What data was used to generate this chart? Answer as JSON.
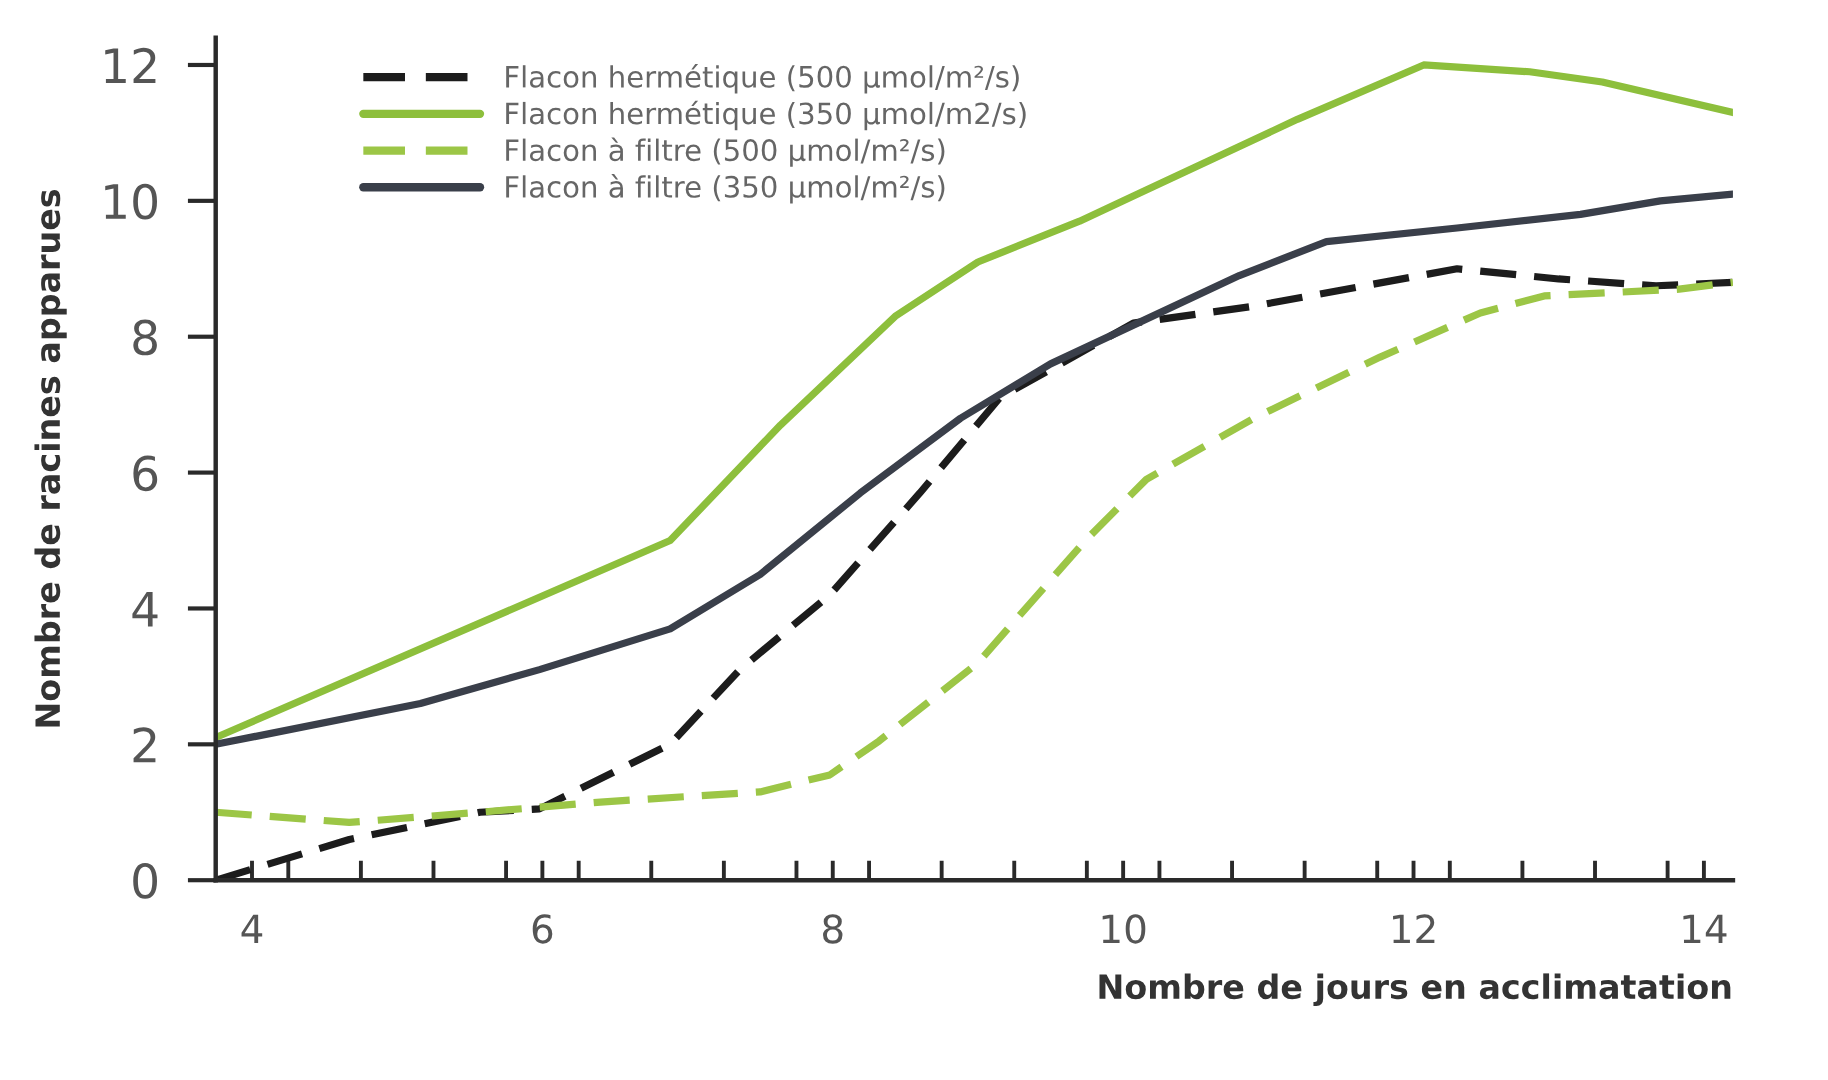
{
  "chart_data": {
    "type": "line",
    "xlabel": "Nombre de jours en acclimatation",
    "ylabel": "Nombre de racines apparues",
    "xlim": [
      3.75,
      14.2
    ],
    "ylim": [
      0,
      12.4
    ],
    "xticks": [
      4,
      6,
      8,
      10,
      12,
      14,
      {
        "value": 4.25,
        "label": null
      },
      {
        "value": 4.75,
        "label": null
      },
      {
        "value": 5.25,
        "label": null
      },
      {
        "value": 5.75,
        "label": null
      },
      {
        "value": 6.25,
        "label": null
      },
      {
        "value": 6.75,
        "label": null
      },
      {
        "value": 7.25,
        "label": null
      },
      {
        "value": 7.75,
        "label": null
      },
      {
        "value": 8.25,
        "label": null
      },
      {
        "value": 8.75,
        "label": null
      },
      {
        "value": 9.25,
        "label": null
      },
      {
        "value": 9.75,
        "label": null
      },
      {
        "value": 10.25,
        "label": null
      },
      {
        "value": 10.75,
        "label": null
      },
      {
        "value": 11.25,
        "label": null
      },
      {
        "value": 11.75,
        "label": null
      },
      {
        "value": 12.25,
        "label": null
      },
      {
        "value": 12.75,
        "label": null
      },
      {
        "value": 13.25,
        "label": null
      },
      {
        "value": 13.75,
        "label": null
      }
    ],
    "yticks": [
      0,
      2,
      4,
      6,
      8,
      10,
      12
    ],
    "grid": false,
    "legend": "top left",
    "marker": "none",
    "series": [
      {
        "name": "Flacon hermétique (500 µmol/m²/s)",
        "color": "#1c1c1c",
        "line_style": "dashed",
        "x": [
          3.75,
          4.67,
          5.57,
          5.98,
          6.88,
          7.36,
          7.98,
          8.6,
          9.15,
          10.07,
          10.9,
          12.3,
          13.0,
          13.67,
          14.2
        ],
        "values": [
          0,
          0.6,
          1.0,
          1.05,
          2.0,
          3.1,
          4.2,
          5.7,
          7.1,
          8.2,
          8.45,
          9.0,
          8.85,
          8.75,
          8.8
        ]
      },
      {
        "name": "Flacon hermétique (350 µmol/m2/s)",
        "color": "#8dbf3c",
        "line_style": "solid",
        "x": [
          3.75,
          6.88,
          7.64,
          8.43,
          9.0,
          9.7,
          10.1,
          11.2,
          12.07,
          12.8,
          13.3,
          14.2
        ],
        "values": [
          2.1,
          5.0,
          6.7,
          8.3,
          9.1,
          9.7,
          10.1,
          11.2,
          12.0,
          11.9,
          11.75,
          11.3
        ]
      },
      {
        "name": "Flacon à filtre (500 µmol/m²/s)",
        "color": "#9cc646",
        "line_style": "dashed",
        "x": [
          3.75,
          4.67,
          5.57,
          6.4,
          7.5,
          7.98,
          8.32,
          9.0,
          9.74,
          10.16,
          10.9,
          11.77,
          12.46,
          12.9,
          13.83,
          14.2
        ],
        "values": [
          1.0,
          0.85,
          1.0,
          1.15,
          1.3,
          1.55,
          2.05,
          3.2,
          5.0,
          5.9,
          6.8,
          7.7,
          8.35,
          8.6,
          8.7,
          8.8
        ]
      },
      {
        "name": "Flacon à filtre (350 µmol/m²/s)",
        "color": "#3a3f4a",
        "line_style": "solid",
        "x": [
          3.75,
          5.16,
          5.98,
          6.88,
          7.5,
          8.19,
          8.88,
          9.5,
          10.1,
          10.8,
          11.4,
          12.3,
          13.15,
          13.7,
          14.2
        ],
        "values": [
          2.0,
          2.6,
          3.1,
          3.7,
          4.5,
          5.7,
          6.8,
          7.6,
          8.2,
          8.9,
          9.4,
          9.6,
          9.8,
          10.0,
          10.1
        ]
      }
    ]
  }
}
